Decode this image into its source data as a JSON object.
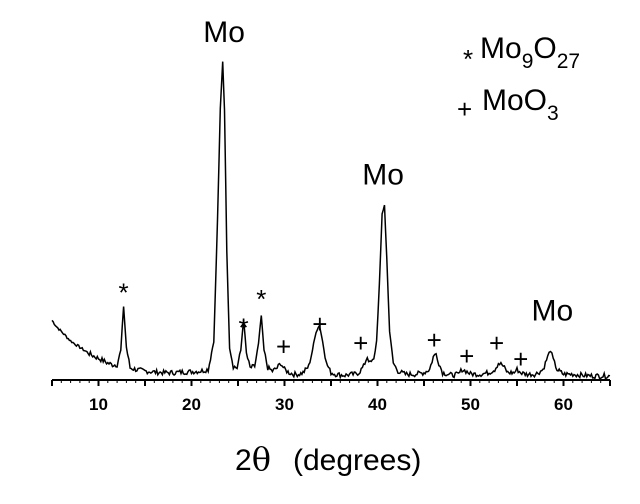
{
  "chart_data": {
    "type": "line",
    "title": "",
    "xlabel": {
      "prefix": "2",
      "symbol": "θ",
      "suffix": "(degrees)"
    },
    "ylabel": "",
    "xlim": [
      5,
      65
    ],
    "xticks": [
      10,
      20,
      30,
      40,
      50,
      60
    ],
    "grid": false,
    "legend": {
      "placement": "top-right",
      "entries": [
        {
          "marker": "*",
          "base": "Mo",
          "sub1": "9",
          "mid": "O",
          "sub2": "27"
        },
        {
          "marker": "+",
          "base": "MoO",
          "sub1": "",
          "mid": "",
          "sub2": "3"
        }
      ]
    },
    "peak_labels": [
      {
        "text": "Mo",
        "x": 23.5,
        "y": 100
      },
      {
        "text": "Mo",
        "x": 40.6,
        "y": 57
      },
      {
        "text": "Mo",
        "x": 58.8,
        "y": 14
      }
    ],
    "markers": [
      {
        "symbol": "*",
        "x": 12.7,
        "y": 27
      },
      {
        "symbol": "*",
        "x": 25.6,
        "y": 16
      },
      {
        "symbol": "*",
        "x": 27.5,
        "y": 25
      },
      {
        "symbol": "+",
        "x": 29.9,
        "y": 10
      },
      {
        "symbol": "+",
        "x": 33.8,
        "y": 17
      },
      {
        "symbol": "+",
        "x": 38.2,
        "y": 11
      },
      {
        "symbol": "+",
        "x": 46.1,
        "y": 12
      },
      {
        "symbol": "+",
        "x": 49.6,
        "y": 7
      },
      {
        "symbol": "+",
        "x": 52.8,
        "y": 11
      },
      {
        "symbol": "+",
        "x": 55.4,
        "y": 6
      }
    ],
    "series": [
      {
        "x": [
          5.0,
          5.5,
          6.0,
          6.5,
          7.0,
          7.5,
          8.0,
          8.5,
          9.0,
          9.5,
          10.0,
          10.5,
          11.0,
          11.5,
          12.0,
          12.4,
          12.7,
          13.0,
          13.4,
          14.0,
          15.0,
          16.0,
          17.0,
          18.0,
          19.0,
          20.0,
          21.0,
          21.8,
          22.4,
          22.8,
          23.1,
          23.35,
          23.55,
          23.8,
          24.1,
          24.5,
          24.9,
          25.3,
          25.6,
          25.9,
          26.3,
          26.8,
          27.2,
          27.5,
          27.8,
          28.2,
          28.7,
          29.2,
          29.6,
          30.0,
          30.5,
          31.0,
          31.5,
          32.0,
          32.6,
          33.0,
          33.4,
          33.75,
          34.1,
          34.5,
          35.0,
          35.5,
          36.0,
          36.5,
          37.0,
          37.5,
          38.0,
          38.5,
          38.9,
          39.2,
          39.6,
          39.9,
          40.2,
          40.5,
          40.75,
          41.0,
          41.3,
          41.7,
          42.2,
          43.0,
          44.0,
          45.0,
          45.6,
          46.0,
          46.3,
          46.6,
          47.0,
          48.0,
          48.7,
          49.1,
          49.5,
          50.0,
          51.0,
          52.0,
          52.6,
          53.0,
          53.4,
          54.0,
          54.7,
          55.0,
          55.4,
          56.0,
          57.0,
          57.8,
          58.3,
          58.6,
          58.9,
          59.3,
          60.0,
          61.0,
          62.0,
          63.0,
          64.0,
          65.0
        ],
        "values": [
          18.5,
          16.5,
          15.0,
          13.5,
          12.0,
          11.0,
          10.0,
          9.0,
          8.0,
          7.2,
          6.5,
          5.8,
          5.0,
          4.5,
          4.5,
          9.0,
          23.0,
          10.0,
          3.5,
          3.0,
          2.5,
          2.2,
          2.0,
          2.0,
          2.2,
          2.3,
          2.5,
          3.0,
          12.0,
          50.0,
          85.0,
          100.0,
          85.0,
          40.0,
          10.0,
          4.0,
          3.5,
          9.0,
          19.0,
          8.0,
          3.5,
          4.0,
          11.0,
          20.0,
          9.0,
          3.5,
          2.5,
          3.5,
          5.0,
          3.0,
          2.0,
          1.5,
          1.5,
          2.0,
          4.0,
          9.0,
          15.0,
          17.0,
          12.0,
          5.0,
          2.0,
          1.5,
          1.3,
          1.2,
          1.4,
          1.5,
          2.0,
          4.0,
          7.0,
          5.0,
          6.0,
          12.0,
          30.0,
          52.0,
          55.0,
          38.0,
          15.0,
          5.0,
          2.5,
          1.5,
          1.5,
          2.0,
          3.0,
          7.0,
          8.0,
          5.0,
          2.0,
          1.2,
          1.5,
          3.0,
          2.5,
          1.6,
          1.5,
          2.0,
          3.0,
          5.0,
          4.5,
          2.0,
          2.0,
          3.0,
          2.0,
          1.5,
          1.5,
          3.0,
          7.0,
          9.0,
          6.0,
          3.0,
          1.5,
          1.5,
          1.2,
          1.0,
          1.0,
          1.0
        ]
      }
    ]
  }
}
